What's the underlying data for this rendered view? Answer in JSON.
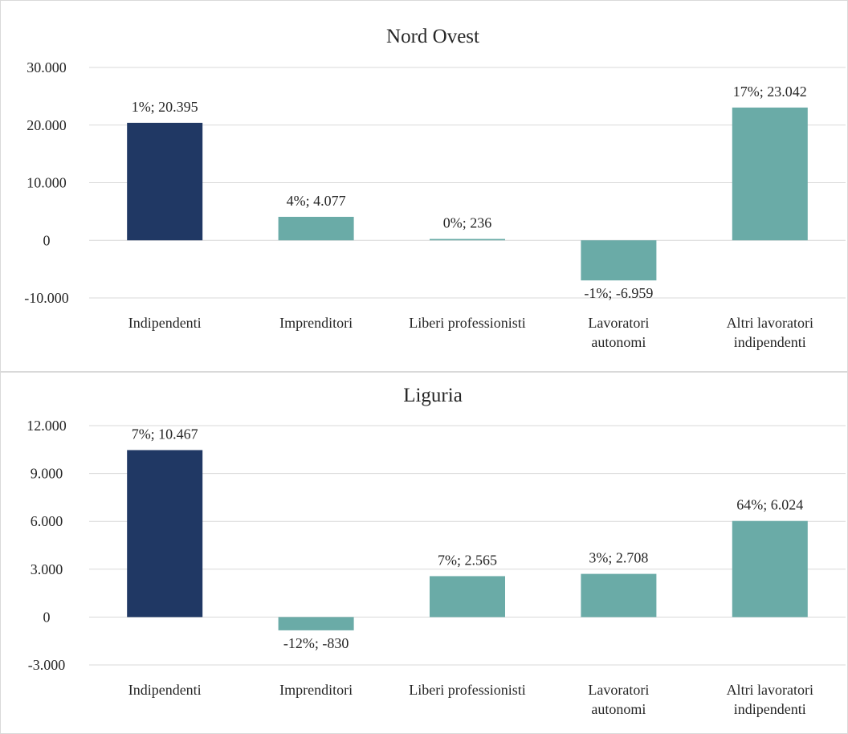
{
  "chart_data": [
    {
      "type": "bar",
      "title": "Nord Ovest",
      "categories": [
        "Indipendenti",
        "Imprenditori",
        "Liberi professionisti",
        "Lavoratori autonomi",
        "Altri lavoratori indipendenti"
      ],
      "category_lines": [
        [
          "Indipendenti"
        ],
        [
          "Imprenditori"
        ],
        [
          "Liberi professionisti"
        ],
        [
          "Lavoratori",
          "autonomi"
        ],
        [
          "Altri lavoratori",
          "indipendenti"
        ]
      ],
      "values": [
        20395,
        4077,
        236,
        -6959,
        23042
      ],
      "data_labels": [
        "1%; 20.395",
        "4%; 4.077",
        "0%; 236",
        "-1%; -6.959",
        "17%; 23.042"
      ],
      "yticks": [
        "-10.000",
        "0",
        "10.000",
        "20.000",
        "30.000"
      ],
      "ytick_values": [
        -10000,
        0,
        10000,
        20000,
        30000
      ],
      "ylim": [
        -10000,
        30000
      ],
      "colors": [
        "#203864",
        "#6aaba7",
        "#6aaba7",
        "#6aaba7",
        "#6aaba7"
      ],
      "grid": true,
      "legend": "none"
    },
    {
      "type": "bar",
      "title": "Liguria",
      "categories": [
        "Indipendenti",
        "Imprenditori",
        "Liberi professionisti",
        "Lavoratori autonomi",
        "Altri lavoratori indipendenti"
      ],
      "category_lines": [
        [
          "Indipendenti"
        ],
        [
          "Imprenditori"
        ],
        [
          "Liberi professionisti"
        ],
        [
          "Lavoratori",
          "autonomi"
        ],
        [
          "Altri lavoratori",
          "indipendenti"
        ]
      ],
      "values": [
        10467,
        -830,
        2565,
        2708,
        6024
      ],
      "data_labels": [
        "7%; 10.467",
        "-12%; -830",
        "7%; 2.565",
        "3%; 2.708",
        "64%; 6.024"
      ],
      "yticks": [
        "-3.000",
        "0",
        "3.000",
        "6.000",
        "9.000",
        "12.000"
      ],
      "ytick_values": [
        -3000,
        0,
        3000,
        6000,
        9000,
        12000
      ],
      "ylim": [
        -3000,
        12000
      ],
      "colors": [
        "#203864",
        "#6aaba7",
        "#6aaba7",
        "#6aaba7",
        "#6aaba7"
      ],
      "grid": true,
      "legend": "none"
    }
  ],
  "colors": {
    "grid": "#d9d9d9",
    "text": "#262626"
  }
}
